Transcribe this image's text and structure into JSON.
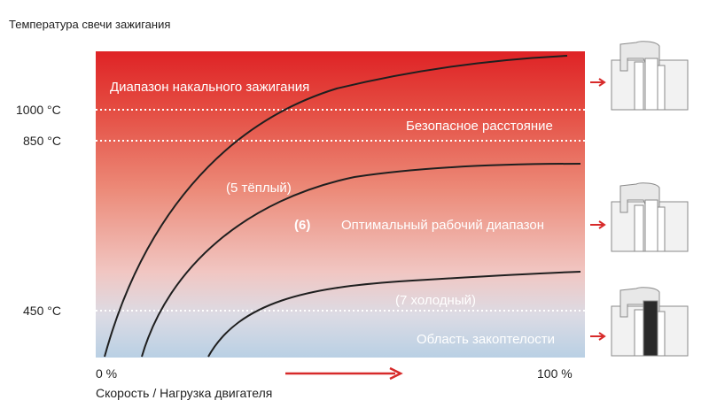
{
  "title": "Температура свечи зажигания",
  "x_axis": {
    "label": "Скорость / Нагрузка двигателя",
    "min_label": "0 %",
    "max_label": "100 %"
  },
  "y_axis": {
    "ticks": [
      "1000 °C",
      "850 °C",
      "450 °C"
    ]
  },
  "zones": {
    "preignition": "Диапазон накального зажигания",
    "safety_margin": "Безопасное расстояние",
    "optimal": "Оптимальный рабочий диапазон",
    "fouling": "Область закоптелости"
  },
  "curves": {
    "warm": "(5 тёплый)",
    "medium": "(6)",
    "cold": "(7 холодный)"
  },
  "colors": {
    "hot": "#e0262a",
    "mid": "#f1b9b0",
    "cool": "#bcd3e6",
    "arrow": "#d72a2a"
  },
  "icons": [
    "spark-plug-hot-icon",
    "spark-plug-optimal-icon",
    "spark-plug-fouled-icon"
  ]
}
